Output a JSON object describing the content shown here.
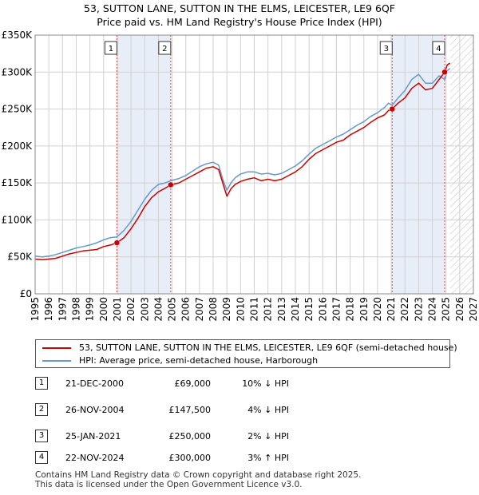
{
  "title_line1": "53, SUTTON LANE, SUTTON IN THE ELMS, LEICESTER, LE9 6QF",
  "title_line2": "Price paid vs. HM Land Registry's House Price Index (HPI)",
  "colors": {
    "property": "#cc0000",
    "hpi": "#6699cc",
    "shade": "#e8eef8",
    "marker_line": "#cc0000"
  },
  "chart_data": {
    "type": "line",
    "xlim": [
      1995,
      2027
    ],
    "ylim": [
      0,
      350000
    ],
    "yticks": [
      0,
      50000,
      100000,
      150000,
      200000,
      250000,
      300000,
      350000
    ],
    "ytick_labels": [
      "£0",
      "£50K",
      "£100K",
      "£150K",
      "£200K",
      "£250K",
      "£300K",
      "£350K"
    ],
    "xticks": [
      "1995",
      "1996",
      "1997",
      "1998",
      "1999",
      "2000",
      "2001",
      "2002",
      "2003",
      "2004",
      "2005",
      "2006",
      "2007",
      "2008",
      "2009",
      "2010",
      "2011",
      "2012",
      "2013",
      "2014",
      "2015",
      "2016",
      "2017",
      "2018",
      "2019",
      "2020",
      "2021",
      "2022",
      "2023",
      "2024",
      "2025",
      "2026",
      "2027"
    ],
    "shaded_ranges": [
      [
        2000.97,
        2004.9
      ],
      [
        2021.07,
        2024.9
      ]
    ],
    "forecast_from": 2025.3,
    "series": [
      {
        "name": "53, SUTTON LANE, SUTTON IN THE ELMS, LEICESTER, LE9 6QF (semi-detached house)",
        "x": [
          1995.0,
          1995.5,
          1996.0,
          1996.5,
          1997.0,
          1997.5,
          1998.0,
          1998.5,
          1999.0,
          1999.5,
          2000.0,
          2000.5,
          2000.97,
          2001.5,
          2002.0,
          2002.5,
          2003.0,
          2003.5,
          2004.0,
          2004.5,
          2004.9,
          2005.5,
          2006.0,
          2006.5,
          2007.0,
          2007.5,
          2008.0,
          2008.4,
          2008.7,
          2009.0,
          2009.3,
          2009.6,
          2010.0,
          2010.5,
          2011.0,
          2011.5,
          2012.0,
          2012.5,
          2013.0,
          2013.5,
          2014.0,
          2014.5,
          2015.0,
          2015.5,
          2016.0,
          2016.5,
          2017.0,
          2017.5,
          2018.0,
          2018.5,
          2019.0,
          2019.5,
          2020.0,
          2020.5,
          2020.8,
          2021.07,
          2021.5,
          2022.0,
          2022.5,
          2023.0,
          2023.5,
          2024.0,
          2024.5,
          2024.9,
          2025.1,
          2025.3
        ],
        "values": [
          47000,
          46000,
          47000,
          48000,
          51000,
          54000,
          56000,
          58000,
          59000,
          60000,
          64000,
          66000,
          69000,
          76000,
          88000,
          102000,
          118000,
          130000,
          138000,
          143000,
          147500,
          150000,
          155000,
          160000,
          165000,
          170000,
          172000,
          168000,
          150000,
          132000,
          142000,
          148000,
          152000,
          155000,
          157000,
          153000,
          155000,
          153000,
          155000,
          160000,
          165000,
          172000,
          182000,
          190000,
          195000,
          200000,
          205000,
          208000,
          215000,
          220000,
          225000,
          232000,
          238000,
          242000,
          248000,
          250000,
          258000,
          265000,
          278000,
          285000,
          276000,
          278000,
          290000,
          300000,
          310000,
          312000
        ]
      },
      {
        "name": "HPI: Average price, semi-detached house, Harborough",
        "x": [
          1995.0,
          1995.5,
          1996.0,
          1996.5,
          1997.0,
          1997.5,
          1998.0,
          1998.5,
          1999.0,
          1999.5,
          2000.0,
          2000.5,
          2000.97,
          2001.5,
          2002.0,
          2002.5,
          2003.0,
          2003.5,
          2004.0,
          2004.5,
          2004.9,
          2005.5,
          2006.0,
          2006.5,
          2007.0,
          2007.5,
          2008.0,
          2008.4,
          2008.7,
          2009.0,
          2009.3,
          2009.6,
          2010.0,
          2010.5,
          2011.0,
          2011.5,
          2012.0,
          2012.5,
          2013.0,
          2013.5,
          2014.0,
          2014.5,
          2015.0,
          2015.5,
          2016.0,
          2016.5,
          2017.0,
          2017.5,
          2018.0,
          2018.5,
          2019.0,
          2019.5,
          2020.0,
          2020.5,
          2020.8,
          2021.07,
          2021.5,
          2022.0,
          2022.5,
          2023.0,
          2023.5,
          2024.0,
          2024.5,
          2024.9,
          2025.1,
          2025.3
        ],
        "values": [
          51000,
          50000,
          51000,
          53000,
          56000,
          59000,
          62000,
          64000,
          66000,
          69000,
          73000,
          76000,
          77000,
          86000,
          98000,
          113000,
          128000,
          140000,
          148000,
          150000,
          153000,
          156000,
          160000,
          166000,
          172000,
          176000,
          178000,
          174000,
          155000,
          140000,
          150000,
          157000,
          162000,
          165000,
          165000,
          162000,
          163000,
          161000,
          163000,
          168000,
          173000,
          180000,
          189000,
          197000,
          202000,
          207000,
          212000,
          216000,
          222000,
          228000,
          233000,
          240000,
          245000,
          252000,
          258000,
          255000,
          265000,
          275000,
          290000,
          297000,
          285000,
          285000,
          295000,
          290000,
          302000,
          305000
        ]
      }
    ],
    "sales": [
      {
        "label": "1",
        "x": 2000.97,
        "value": 69000
      },
      {
        "label": "2",
        "x": 2004.9,
        "value": 147500
      },
      {
        "label": "3",
        "x": 2021.07,
        "value": 250000
      },
      {
        "label": "4",
        "x": 2024.9,
        "value": 300000
      }
    ]
  },
  "legend": {
    "property": "53, SUTTON LANE, SUTTON IN THE ELMS, LEICESTER, LE9 6QF (semi-detached house)",
    "hpi": "HPI: Average price, semi-detached house, Harborough"
  },
  "sales_table": [
    {
      "num": "1",
      "date": "21-DEC-2000",
      "price": "£69,000",
      "hpi": "10% ↓ HPI"
    },
    {
      "num": "2",
      "date": "26-NOV-2004",
      "price": "£147,500",
      "hpi": "4% ↓ HPI"
    },
    {
      "num": "3",
      "date": "25-JAN-2021",
      "price": "£250,000",
      "hpi": "2% ↓ HPI"
    },
    {
      "num": "4",
      "date": "22-NOV-2024",
      "price": "£300,000",
      "hpi": "3% ↑ HPI"
    }
  ],
  "footer_line1": "Contains HM Land Registry data © Crown copyright and database right 2025.",
  "footer_line2": "This data is licensed under the Open Government Licence v3.0."
}
